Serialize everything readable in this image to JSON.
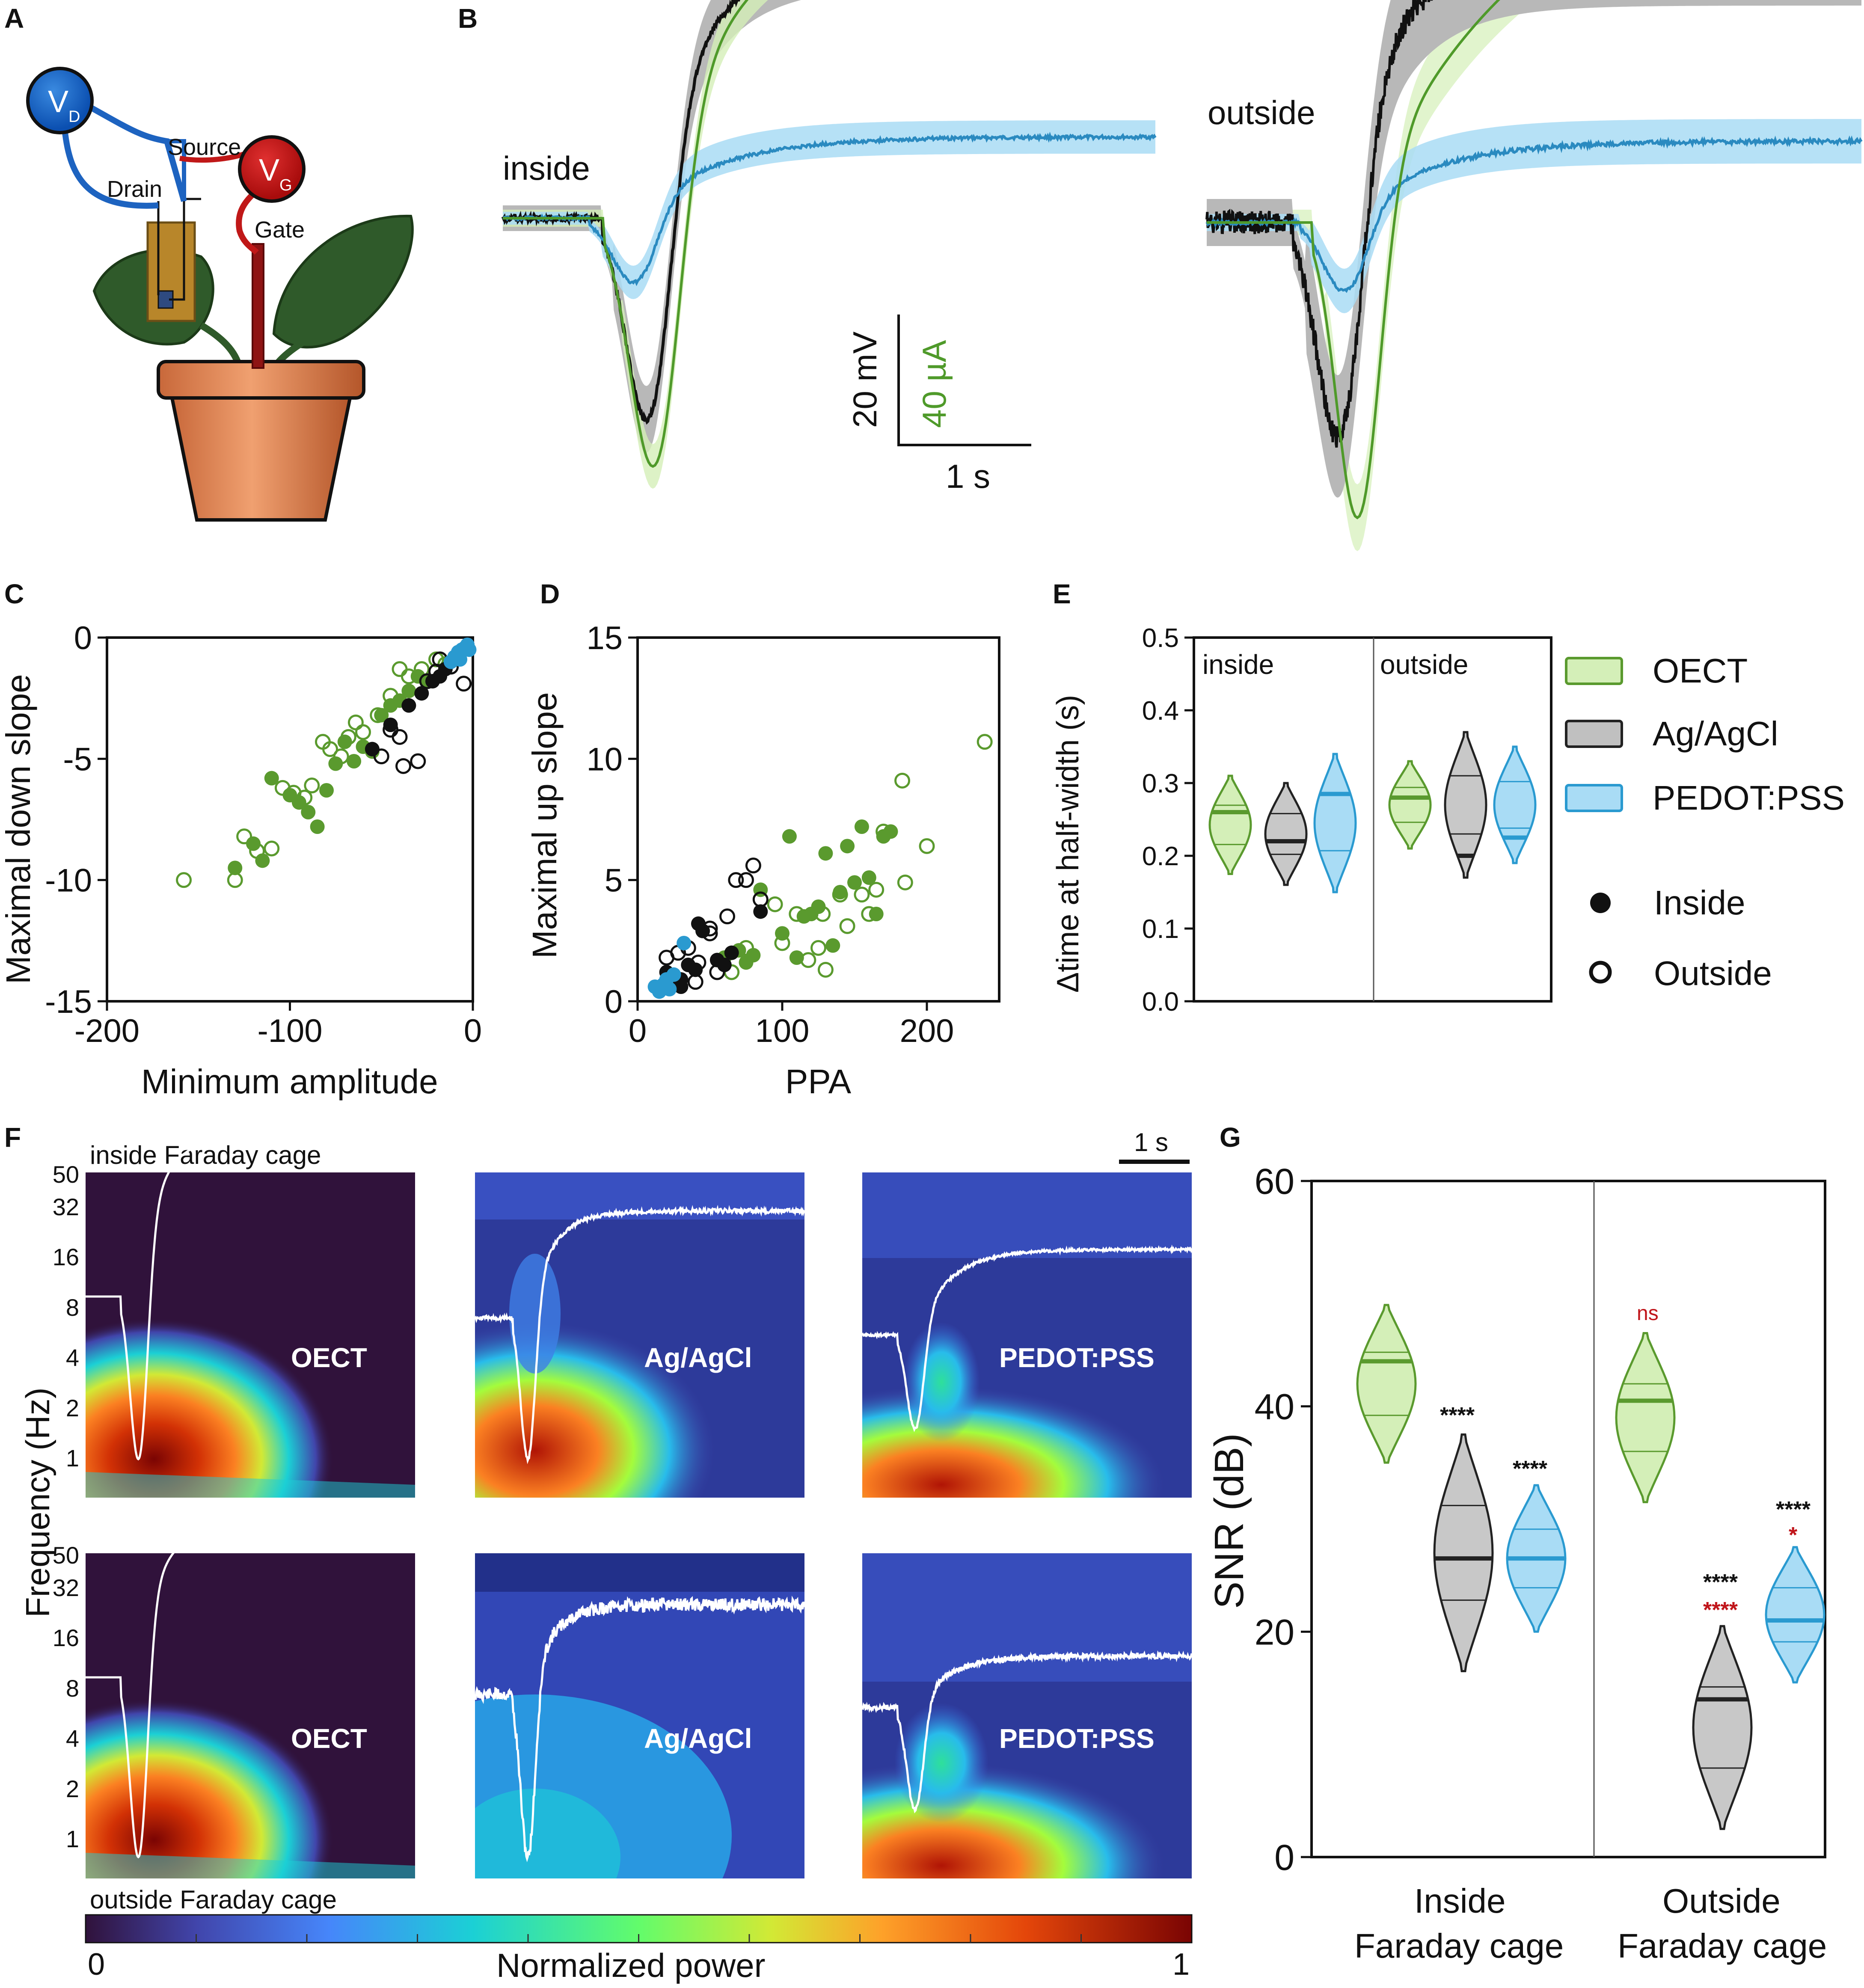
{
  "panels": {
    "A": "A",
    "B": "B",
    "C": "C",
    "D": "D",
    "E": "E",
    "F": "F",
    "G": "G"
  },
  "panelA": {
    "vd": "V",
    "vd_sub": "D",
    "vg": "V",
    "vg_sub": "G",
    "source": "Source",
    "drain": "Drain",
    "gate": "Gate"
  },
  "panelB": {
    "inside": "inside",
    "outside": "outside",
    "scale_mv": "20 mV",
    "scale_ua": "40 µA",
    "scale_s": "1 s"
  },
  "panelC": {
    "xlabel": "Minimum amplitude",
    "ylabel": "Maximal down slope",
    "xticks": [
      "-200",
      "-100",
      "0"
    ],
    "yticks": [
      "0",
      "-5",
      "-10",
      "-15"
    ]
  },
  "panelD": {
    "xlabel": "PPA",
    "ylabel": "Maximal up slope",
    "xticks": [
      "0",
      "100",
      "200"
    ],
    "yticks": [
      "0",
      "5",
      "10",
      "15"
    ]
  },
  "panelE": {
    "ylabel": "Δtime at half-width (s)",
    "yticks": [
      "0.0",
      "0.1",
      "0.2",
      "0.3",
      "0.4",
      "0.5"
    ],
    "inside": "inside",
    "outside": "outside"
  },
  "legend": {
    "oect": "OECT",
    "agagcl": "Ag/AgCl",
    "pedot": "PEDOT:PSS",
    "inside": "Inside",
    "outside": "Outside"
  },
  "panelF": {
    "top_label": "inside Faraday cage",
    "bottom_label": "outside Faraday cage",
    "scale": "1 s",
    "ylabel": "Frequency (Hz)",
    "yticks": [
      "50",
      "32",
      "16",
      "8",
      "4",
      "2",
      "1"
    ],
    "names": [
      "OECT",
      "Ag/AgCl",
      "PEDOT:PSS",
      "OECT",
      "Ag/AgCl",
      "PEDOT:PSS"
    ],
    "cbar_min": "0",
    "cbar_max": "1",
    "cbar_label": "Normalized power"
  },
  "panelG": {
    "ylabel": "SNR (dB)",
    "yticks": [
      "60",
      "40",
      "20",
      "0"
    ],
    "group1": [
      "Inside",
      "Faraday cage"
    ],
    "group2": [
      "Outside",
      "Faraday cage"
    ],
    "sig": {
      "in_ag": "****",
      "in_pe": "****",
      "out_oect": "ns",
      "out_ag_k": "****",
      "out_ag_r": "****",
      "out_pe_k": "****",
      "out_pe_r": "*"
    }
  },
  "colors": {
    "oect": "#5a9a2e",
    "oect_fill": "#d4efb8",
    "ag": "#222222",
    "ag_fill": "#c8c8c8",
    "pedot": "#2a9ad0",
    "pedot_fill": "#a9dcf5",
    "sig_red": "#c0151a"
  },
  "chart_data": [
    {
      "panel": "C",
      "type": "scatter",
      "xlabel": "Minimum amplitude",
      "ylabel": "Maximal down slope",
      "xlim": [
        -200,
        0
      ],
      "ylim": [
        -15,
        0
      ],
      "series": [
        {
          "name": "OECT",
          "marker": "filled",
          "points": [
            [
              -130,
              -9.5
            ],
            [
              -120,
              -8.5
            ],
            [
              -115,
              -9.2
            ],
            [
              -110,
              -5.8
            ],
            [
              -100,
              -6.5
            ],
            [
              -95,
              -6.8
            ],
            [
              -90,
              -7.2
            ],
            [
              -85,
              -7.8
            ],
            [
              -80,
              -6.3
            ],
            [
              -75,
              -5.2
            ],
            [
              -70,
              -4.3
            ],
            [
              -65,
              -5.1
            ],
            [
              -60,
              -4.5
            ],
            [
              -55,
              -4.7
            ],
            [
              -50,
              -3.2
            ],
            [
              -45,
              -2.8
            ],
            [
              -40,
              -2.6
            ],
            [
              -35,
              -2.2
            ],
            [
              -30,
              -1.6
            ],
            [
              -25,
              -1.8
            ]
          ]
        },
        {
          "name": "OECT",
          "marker": "open",
          "points": [
            [
              -158,
              -10
            ],
            [
              -130,
              -10
            ],
            [
              -125,
              -8.2
            ],
            [
              -118,
              -8.8
            ],
            [
              -110,
              -8.7
            ],
            [
              -104,
              -6.2
            ],
            [
              -98,
              -6.4
            ],
            [
              -92,
              -6.6
            ],
            [
              -88,
              -6.1
            ],
            [
              -82,
              -4.3
            ],
            [
              -78,
              -4.6
            ],
            [
              -72,
              -4.9
            ],
            [
              -68,
              -4.1
            ],
            [
              -64,
              -3.5
            ],
            [
              -60,
              -3.9
            ],
            [
              -52,
              -3.2
            ],
            [
              -45,
              -2.4
            ],
            [
              -40,
              -1.3
            ],
            [
              -35,
              -1.6
            ],
            [
              -28,
              -1.3
            ],
            [
              -20,
              -0.9
            ],
            [
              -15,
              -1.1
            ]
          ]
        },
        {
          "name": "Ag/AgCl",
          "marker": "filled",
          "points": [
            [
              -55,
              -4.6
            ],
            [
              -45,
              -3.6
            ],
            [
              -35,
              -2.8
            ],
            [
              -28,
              -2.3
            ],
            [
              -22,
              -1.8
            ],
            [
              -18,
              -1.6
            ],
            [
              -15,
              -1.3
            ],
            [
              -10,
              -0.9
            ]
          ]
        },
        {
          "name": "Ag/AgCl",
          "marker": "open",
          "points": [
            [
              -50,
              -4.9
            ],
            [
              -45,
              -3.8
            ],
            [
              -40,
              -4.1
            ],
            [
              -30,
              -5.1
            ],
            [
              -38,
              -5.3
            ],
            [
              -25,
              -1.8
            ],
            [
              -20,
              -1.4
            ],
            [
              -12,
              -1.2
            ],
            [
              -5,
              -1.9
            ],
            [
              -18,
              -0.9
            ]
          ]
        },
        {
          "name": "PEDOT:PSS",
          "marker": "filled",
          "points": [
            [
              -12,
              -1.0
            ],
            [
              -10,
              -0.8
            ],
            [
              -8,
              -0.6
            ],
            [
              -6,
              -0.5
            ],
            [
              -4,
              -0.4
            ],
            [
              -3,
              -0.3
            ],
            [
              -2,
              -0.5
            ],
            [
              -7,
              -0.9
            ]
          ]
        }
      ]
    },
    {
      "panel": "D",
      "type": "scatter",
      "xlabel": "PPA",
      "ylabel": "Maximal up slope",
      "xlim": [
        0,
        250
      ],
      "ylim": [
        0,
        15
      ],
      "series": [
        {
          "name": "OECT",
          "marker": "filled",
          "points": [
            [
              60,
              1.8
            ],
            [
              70,
              2.1
            ],
            [
              75,
              1.6
            ],
            [
              80,
              1.9
            ],
            [
              85,
              4.6
            ],
            [
              100,
              2.8
            ],
            [
              105,
              6.8
            ],
            [
              115,
              3.5
            ],
            [
              120,
              3.6
            ],
            [
              125,
              3.9
            ],
            [
              130,
              6.1
            ],
            [
              140,
              4.5
            ],
            [
              145,
              6.4
            ],
            [
              150,
              4.9
            ],
            [
              155,
              7.2
            ],
            [
              160,
              5.1
            ],
            [
              165,
              3.6
            ],
            [
              170,
              6.8
            ],
            [
              175,
              7.0
            ],
            [
              135,
              2.3
            ],
            [
              110,
              1.8
            ]
          ]
        },
        {
          "name": "OECT",
          "marker": "open",
          "points": [
            [
              240,
              10.7
            ],
            [
              183,
              9.1
            ],
            [
              200,
              6.4
            ],
            [
              185,
              4.9
            ],
            [
              160,
              3.6
            ],
            [
              165,
              4.6
            ],
            [
              140,
              4.4
            ],
            [
              128,
              3.6
            ],
            [
              130,
              1.3
            ],
            [
              118,
              1.7
            ],
            [
              110,
              3.6
            ],
            [
              100,
              2.4
            ],
            [
              95,
              4.0
            ],
            [
              65,
              1.2
            ],
            [
              75,
              2.2
            ],
            [
              125,
              2.2
            ],
            [
              145,
              3.1
            ],
            [
              155,
              4.4
            ],
            [
              170,
              7.0
            ]
          ]
        },
        {
          "name": "Ag/AgCl",
          "marker": "filled",
          "points": [
            [
              20,
              1.2
            ],
            [
              25,
              1.0
            ],
            [
              30,
              0.9
            ],
            [
              35,
              1.5
            ],
            [
              40,
              1.3
            ],
            [
              45,
              2.9
            ],
            [
              55,
              1.7
            ],
            [
              60,
              1.5
            ],
            [
              65,
              2.0
            ],
            [
              85,
              3.7
            ],
            [
              30,
              0.6
            ],
            [
              42,
              3.2
            ]
          ]
        },
        {
          "name": "Ag/AgCl",
          "marker": "open",
          "points": [
            [
              20,
              1.8
            ],
            [
              28,
              2.0
            ],
            [
              35,
              2.2
            ],
            [
              42,
              1.6
            ],
            [
              50,
              2.8
            ],
            [
              55,
              1.2
            ],
            [
              62,
              3.5
            ],
            [
              68,
              5.0
            ],
            [
              75,
              5.0
            ],
            [
              80,
              5.6
            ],
            [
              85,
              4.2
            ],
            [
              40,
              0.8
            ],
            [
              50,
              3.0
            ]
          ]
        },
        {
          "name": "PEDOT:PSS",
          "marker": "filled",
          "points": [
            [
              15,
              0.4
            ],
            [
              18,
              0.7
            ],
            [
              20,
              0.9
            ],
            [
              22,
              0.5
            ],
            [
              25,
              1.1
            ],
            [
              32,
              2.4
            ],
            [
              12,
              0.6
            ]
          ]
        }
      ]
    },
    {
      "panel": "E",
      "type": "violin",
      "ylabel": "Δtime at half-width (s)",
      "ylim": [
        0,
        0.5
      ],
      "groups": [
        "inside",
        "outside"
      ],
      "series": [
        {
          "name": "OECT",
          "medians": [
            0.26,
            0.28
          ],
          "ranges": [
            [
              0.175,
              0.31
            ],
            [
              0.21,
              0.33
            ]
          ]
        },
        {
          "name": "Ag/AgCl",
          "medians": [
            0.22,
            0.2
          ],
          "ranges": [
            [
              0.16,
              0.3
            ],
            [
              0.17,
              0.37
            ]
          ]
        },
        {
          "name": "PEDOT:PSS",
          "medians": [
            0.285,
            0.225
          ],
          "ranges": [
            [
              0.15,
              0.34
            ],
            [
              0.19,
              0.35
            ]
          ]
        }
      ]
    },
    {
      "panel": "G",
      "type": "violin",
      "ylabel": "SNR (dB)",
      "ylim": [
        0,
        60
      ],
      "groups": [
        "Inside Faraday cage",
        "Outside Faraday cage"
      ],
      "series": [
        {
          "name": "OECT",
          "medians": [
            44,
            40.5
          ],
          "ranges": [
            [
              35,
              49
            ],
            [
              31.5,
              46.5
            ]
          ]
        },
        {
          "name": "Ag/AgCl",
          "medians": [
            26.5,
            14
          ],
          "ranges": [
            [
              16.5,
              37.5
            ],
            [
              2.5,
              20.5
            ]
          ]
        },
        {
          "name": "PEDOT:PSS",
          "medians": [
            26.5,
            21
          ],
          "ranges": [
            [
              20,
              33
            ],
            [
              15.5,
              27.5
            ]
          ]
        }
      ]
    }
  ]
}
